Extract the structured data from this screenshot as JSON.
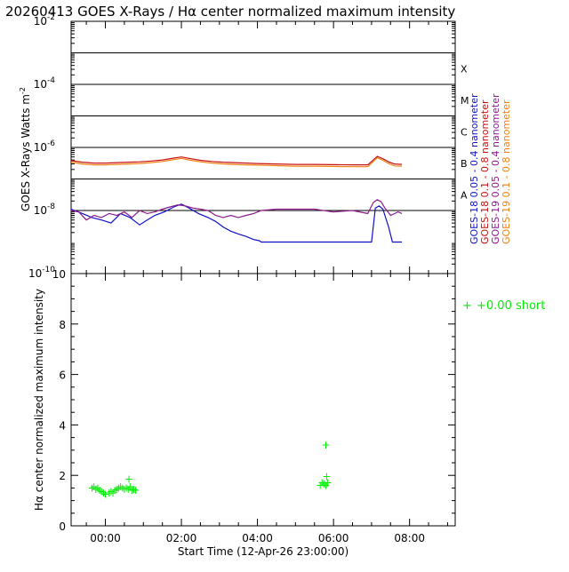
{
  "title": "20260413 GOES X-Rays / Hα center normalized maximum intensity",
  "colors": {
    "goes18_short": "#1010c8",
    "goes18_long": "#c81010",
    "goes19_short": "#8a1a8a",
    "goes19_long": "#f08010",
    "halpha": "#00ee00"
  },
  "chart_data": [
    {
      "type": "line",
      "title": "20260413 GOES X-Rays / Hα center normalized maximum intensity",
      "ylabel": "GOES X-Rays Watts m",
      "ylabel_exponent": "-2",
      "yscale": "log",
      "ylim": [
        1e-10,
        0.01
      ],
      "xlim_hours": [
        -0.9,
        9.2
      ],
      "y_ticks": [
        {
          "base": "10",
          "exp": "-2",
          "value": 0.01
        },
        {
          "base": "10",
          "exp": "-4",
          "value": 0.0001
        },
        {
          "base": "10",
          "exp": "-6",
          "value": 1e-06
        },
        {
          "base": "10",
          "exp": "-8",
          "value": 1e-08
        },
        {
          "base": "10",
          "exp": "-10",
          "value": 1e-10
        }
      ],
      "flare_levels": [
        0.001,
        0.0001,
        1e-05,
        1e-06,
        1e-07,
        1e-08
      ],
      "flare_classes": [
        {
          "label": "X",
          "value": 0.000316
        },
        {
          "label": "M",
          "value": 3.16e-05
        },
        {
          "label": "C",
          "value": 3.16e-06
        },
        {
          "label": "B",
          "value": 3.16e-07
        },
        {
          "label": "A",
          "value": 3.16e-08
        }
      ],
      "series": [
        {
          "name": "GOES-18 0.05 - 0.4 nanometer",
          "legend": "GOES-18  0.05 - 0.4 nanometer",
          "color": "#1010c8",
          "x": [
            -0.9,
            -0.6,
            -0.35,
            -0.1,
            0.15,
            0.4,
            0.65,
            0.9,
            1.1,
            1.3,
            1.55,
            1.8,
            2.0,
            2.2,
            2.45,
            2.7,
            2.9,
            3.1,
            3.3,
            3.5,
            3.7,
            3.9,
            4.05,
            4.1,
            4.6,
            5.2,
            5.8,
            6.4,
            7.0,
            7.1,
            7.2,
            7.3,
            7.45,
            7.55,
            7.6,
            7.8
          ],
          "y": [
            1.1e-08,
            8e-09,
            6e-09,
            5e-09,
            4e-09,
            8e-09,
            6e-09,
            3.5e-09,
            5e-09,
            7e-09,
            9e-09,
            1.3e-08,
            1.6e-08,
            1.2e-08,
            8e-09,
            6e-09,
            4.5e-09,
            3e-09,
            2.2e-09,
            1.8e-09,
            1.5e-09,
            1.2e-09,
            1.1e-09,
            1e-09,
            1e-09,
            1e-09,
            1e-09,
            1e-09,
            1e-09,
            1.2e-08,
            1.4e-08,
            1.1e-08,
            3e-09,
            1e-09,
            1e-09,
            1e-09
          ]
        },
        {
          "name": "GOES-18 0.1 - 0.8 nanometer",
          "legend": "GOES-18  0.1  - 0.8 nanometer",
          "color": "#c81010",
          "x": [
            -0.9,
            -0.6,
            -0.3,
            0.0,
            0.3,
            0.6,
            0.9,
            1.2,
            1.5,
            1.8,
            2.0,
            2.2,
            2.5,
            2.8,
            3.1,
            3.4,
            3.7,
            4.0,
            4.5,
            5.0,
            5.5,
            6.0,
            6.5,
            6.9,
            7.05,
            7.15,
            7.3,
            7.45,
            7.6,
            7.8
          ],
          "y": [
            3.8e-07,
            3.4e-07,
            3.2e-07,
            3.2e-07,
            3.3e-07,
            3.4e-07,
            3.5e-07,
            3.7e-07,
            4e-07,
            4.6e-07,
            5e-07,
            4.5e-07,
            3.9e-07,
            3.6e-07,
            3.4e-07,
            3.3e-07,
            3.2e-07,
            3.1e-07,
            3e-07,
            2.9e-07,
            2.9e-07,
            2.85e-07,
            2.8e-07,
            2.8e-07,
            4e-07,
            5.2e-07,
            4.4e-07,
            3.5e-07,
            3e-07,
            2.9e-07
          ]
        },
        {
          "name": "GOES-19 0.05 - 0.4 nanometer",
          "legend": "GOES-19  0.05 - 0.4 nanometer",
          "color": "#8a1a8a",
          "x": [
            -0.9,
            -0.7,
            -0.5,
            -0.3,
            -0.1,
            0.1,
            0.3,
            0.5,
            0.7,
            0.9,
            1.1,
            1.3,
            1.5,
            1.7,
            1.9,
            2.1,
            2.3,
            2.5,
            2.7,
            2.9,
            3.1,
            3.3,
            3.5,
            3.7,
            3.9,
            4.1,
            4.5,
            5.0,
            5.5,
            6.0,
            6.5,
            6.9,
            7.05,
            7.15,
            7.25,
            7.35,
            7.5,
            7.7,
            7.8
          ],
          "y": [
            1e-08,
            9e-09,
            5e-09,
            7e-09,
            6e-09,
            8e-09,
            7e-09,
            9e-09,
            6e-09,
            1e-08,
            8e-09,
            9e-09,
            1.1e-08,
            1.3e-08,
            1.5e-08,
            1.4e-08,
            1.2e-08,
            1.1e-08,
            1e-08,
            7e-09,
            6e-09,
            7e-09,
            6e-09,
            7e-09,
            8e-09,
            1e-08,
            1.1e-08,
            1.1e-08,
            1.1e-08,
            9e-09,
            1e-08,
            8e-09,
            1.8e-08,
            2.2e-08,
            1.9e-08,
            1.2e-08,
            7e-09,
            9e-09,
            8e-09
          ]
        },
        {
          "name": "GOES-19 0.1 - 0.8 nanometer",
          "legend": "GOES-19  0.1  - 0.8 nanometer",
          "color": "#f08010",
          "x": [
            -0.9,
            -0.6,
            -0.3,
            0.0,
            0.3,
            0.6,
            0.9,
            1.2,
            1.5,
            1.8,
            2.0,
            2.2,
            2.5,
            2.8,
            3.1,
            3.4,
            3.7,
            4.0,
            4.5,
            5.0,
            5.5,
            6.0,
            6.5,
            6.9,
            7.05,
            7.15,
            7.3,
            7.45,
            7.6,
            7.8
          ],
          "y": [
            3.4e-07,
            3e-07,
            2.8e-07,
            2.8e-07,
            2.9e-07,
            3e-07,
            3.1e-07,
            3.3e-07,
            3.6e-07,
            4.1e-07,
            4.5e-07,
            4e-07,
            3.5e-07,
            3.2e-07,
            3e-07,
            2.9e-07,
            2.8e-07,
            2.75e-07,
            2.65e-07,
            2.55e-07,
            2.55e-07,
            2.5e-07,
            2.45e-07,
            2.45e-07,
            3.6e-07,
            4.7e-07,
            3.9e-07,
            3.1e-07,
            2.6e-07,
            2.55e-07
          ]
        }
      ]
    },
    {
      "type": "scatter",
      "ylabel": "Hα center normalized maximum intensity",
      "xlabel": "Start Time (12-Apr-26 23:00:00)",
      "ylim": [
        0,
        10
      ],
      "xlim_hours": [
        -0.9,
        9.2
      ],
      "y_ticks": [
        "0",
        "2",
        "4",
        "6",
        "8",
        "10"
      ],
      "y_tick_values": [
        0,
        2,
        4,
        6,
        8,
        10
      ],
      "x_ticks": [
        "00:00",
        "02:00",
        "04:00",
        "06:00",
        "08:00"
      ],
      "x_tick_hours": [
        0,
        2,
        4,
        6,
        8
      ],
      "legend_marker": "+",
      "legend_text": "+0.00 short",
      "series": [
        {
          "name": "+0.00 short",
          "color": "#00ee00",
          "x": [
            -0.35,
            -0.3,
            -0.25,
            -0.2,
            -0.15,
            -0.1,
            -0.05,
            0.0,
            0.1,
            0.15,
            0.2,
            0.25,
            0.3,
            0.35,
            0.4,
            0.45,
            0.5,
            0.55,
            0.6,
            0.65,
            0.7,
            0.75,
            0.8,
            0.62,
            5.65,
            5.7,
            5.75,
            5.8,
            5.85,
            5.82,
            5.8
          ],
          "y": [
            1.5,
            1.55,
            1.45,
            1.5,
            1.4,
            1.35,
            1.3,
            1.25,
            1.3,
            1.35,
            1.3,
            1.4,
            1.45,
            1.5,
            1.55,
            1.5,
            1.45,
            1.5,
            1.45,
            1.55,
            1.4,
            1.45,
            1.4,
            1.85,
            1.6,
            1.7,
            1.65,
            1.6,
            1.7,
            1.95,
            3.2
          ]
        }
      ]
    }
  ]
}
